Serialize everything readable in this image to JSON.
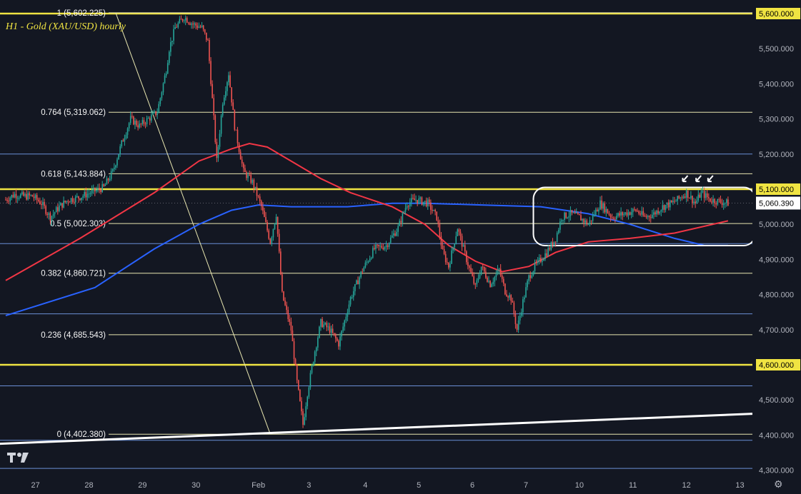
{
  "title": "H1 - Gold (XAU/USD) hourly",
  "colors": {
    "background": "#131722",
    "bull": "#26a69a",
    "bear": "#ef5350",
    "yellow_line": "#f0e442",
    "ma_red": "#f23645",
    "ma_blue": "#2962ff",
    "fib_line": "#e8e6b0",
    "hline_blue": "#6b8fd6",
    "white": "#ffffff",
    "axis_text": "#b2b5be"
  },
  "price_badge": "5,060.390",
  "chart_data": {
    "type": "candlestick",
    "title": "H1 - Gold (XAU/USD) hourly",
    "ylim": [
      4280,
      5630
    ],
    "y_ticks": [
      "4,300.000",
      "4,400.000",
      "4,500.000",
      "4,600.000",
      "4,700.000",
      "4,800.000",
      "4,900.000",
      "5,000.000",
      "5,100.000",
      "5,200.000",
      "5,300.000",
      "5,400.000",
      "5,500.000",
      "5,600.000"
    ],
    "x_ticks": [
      "27",
      "28",
      "29",
      "30",
      "Feb",
      "3",
      "4",
      "5",
      "6",
      "7",
      "10",
      "11",
      "12",
      "13"
    ],
    "yellow_levels": [
      5600.0,
      5100.0,
      4600.0
    ],
    "blue_levels": [
      5200,
      4945,
      4745,
      4540,
      4385,
      4305
    ],
    "fib_levels": [
      {
        "label": "1 (5,602.225)",
        "value": 5602.225
      },
      {
        "label": "0.764 (5,319.062)",
        "value": 5319.062
      },
      {
        "label": "0.618 (5,143.884)",
        "value": 5143.884
      },
      {
        "label": "0.5 (5,002.303)",
        "value": 5002.303
      },
      {
        "label": "0.382 (4,860.721)",
        "value": 4860.721
      },
      {
        "label": "0.236 (4,685.543)",
        "value": 4685.543
      },
      {
        "label": "0 (4,402.380)",
        "value": 4402.38
      }
    ],
    "last_price": 5060.39,
    "close_path": [
      [
        0,
        5070
      ],
      [
        6,
        5085
      ],
      [
        12,
        5080
      ],
      [
        18,
        5080
      ],
      [
        24,
        5060
      ],
      [
        30,
        5020
      ],
      [
        36,
        5050
      ],
      [
        42,
        5070
      ],
      [
        48,
        5075
      ],
      [
        54,
        5085
      ],
      [
        60,
        5095
      ],
      [
        66,
        5105
      ],
      [
        72,
        5150
      ],
      [
        78,
        5230
      ],
      [
        84,
        5300
      ],
      [
        90,
        5280
      ],
      [
        96,
        5300
      ],
      [
        102,
        5320
      ],
      [
        108,
        5440
      ],
      [
        110,
        5500
      ],
      [
        114,
        5560
      ],
      [
        120,
        5590
      ],
      [
        126,
        5570
      ],
      [
        132,
        5560
      ],
      [
        136,
        5520
      ],
      [
        140,
        5300
      ],
      [
        142,
        5180
      ],
      [
        146,
        5350
      ],
      [
        150,
        5430
      ],
      [
        154,
        5280
      ],
      [
        160,
        5150
      ],
      [
        166,
        5120
      ],
      [
        172,
        5050
      ],
      [
        178,
        4950
      ],
      [
        182,
        5030
      ],
      [
        186,
        4800
      ],
      [
        192,
        4700
      ],
      [
        196,
        4550
      ],
      [
        200,
        4430
      ],
      [
        203,
        4520
      ],
      [
        208,
        4640
      ],
      [
        212,
        4720
      ],
      [
        218,
        4700
      ],
      [
        224,
        4660
      ],
      [
        232,
        4790
      ],
      [
        240,
        4870
      ],
      [
        248,
        4930
      ],
      [
        256,
        4940
      ],
      [
        264,
        4990
      ],
      [
        270,
        5060
      ],
      [
        276,
        5070
      ],
      [
        284,
        5060
      ],
      [
        290,
        5020
      ],
      [
        294,
        4920
      ],
      [
        298,
        4880
      ],
      [
        304,
        4990
      ],
      [
        310,
        4900
      ],
      [
        316,
        4820
      ],
      [
        320,
        4880
      ],
      [
        326,
        4830
      ],
      [
        332,
        4870
      ],
      [
        336,
        4810
      ],
      [
        340,
        4790
      ],
      [
        344,
        4700
      ],
      [
        348,
        4780
      ],
      [
        352,
        4850
      ],
      [
        356,
        4880
      ],
      [
        364,
        4920
      ],
      [
        370,
        4960
      ],
      [
        374,
        5020
      ],
      [
        380,
        5030
      ],
      [
        386,
        5020
      ],
      [
        392,
        5000
      ],
      [
        396,
        5030
      ],
      [
        400,
        5060
      ],
      [
        408,
        5020
      ],
      [
        416,
        5030
      ],
      [
        424,
        5040
      ],
      [
        430,
        5020
      ],
      [
        436,
        5030
      ],
      [
        442,
        5050
      ],
      [
        448,
        5060
      ],
      [
        452,
        5070
      ],
      [
        458,
        5090
      ],
      [
        464,
        5060
      ],
      [
        468,
        5090
      ],
      [
        474,
        5070
      ],
      [
        480,
        5065
      ],
      [
        486,
        5060
      ]
    ],
    "ma_red_path": [
      [
        0,
        4840
      ],
      [
        50,
        4960
      ],
      [
        100,
        5090
      ],
      [
        130,
        5180
      ],
      [
        152,
        5215
      ],
      [
        164,
        5230
      ],
      [
        176,
        5220
      ],
      [
        192,
        5180
      ],
      [
        212,
        5130
      ],
      [
        232,
        5090
      ],
      [
        260,
        5050
      ],
      [
        282,
        5000
      ],
      [
        298,
        4940
      ],
      [
        316,
        4895
      ],
      [
        334,
        4865
      ],
      [
        352,
        4880
      ],
      [
        370,
        4920
      ],
      [
        392,
        4950
      ],
      [
        420,
        4960
      ],
      [
        450,
        4975
      ],
      [
        486,
        5010
      ]
    ],
    "ma_blue_path": [
      [
        0,
        4740
      ],
      [
        60,
        4820
      ],
      [
        100,
        4930
      ],
      [
        130,
        5000
      ],
      [
        152,
        5040
      ],
      [
        170,
        5055
      ],
      [
        192,
        5050
      ],
      [
        230,
        5050
      ],
      [
        260,
        5060
      ],
      [
        282,
        5060
      ],
      [
        320,
        5055
      ],
      [
        360,
        5050
      ],
      [
        392,
        5030
      ],
      [
        420,
        5000
      ],
      [
        450,
        4960
      ],
      [
        470,
        4940
      ],
      [
        486,
        4940
      ]
    ],
    "fib_diagonal": [
      [
        74,
        5602.225
      ],
      [
        178,
        4402.38
      ]
    ],
    "trendline": [
      [
        -5,
        4375
      ],
      [
        500,
        4460
      ]
    ],
    "highlight_box": {
      "x": [
        356,
        486
      ],
      "y": [
        4980,
        5105
      ]
    },
    "arrows": [
      [
        456,
        5110
      ],
      [
        465,
        5110
      ],
      [
        473,
        5110
      ]
    ],
    "x_tick_index": [
      20,
      56,
      92,
      128,
      170,
      204,
      242,
      278,
      314,
      350,
      386,
      422,
      458,
      494
    ]
  }
}
